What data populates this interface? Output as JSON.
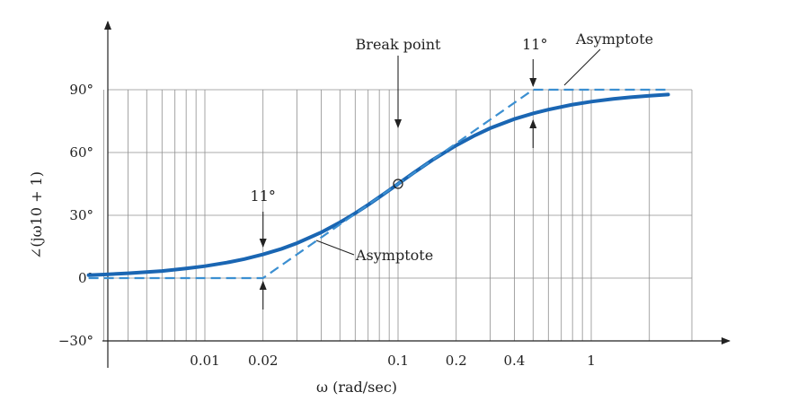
{
  "chart_data": {
    "type": "line",
    "xlabel": "ω (rad/sec)",
    "ylabel": "∠(jω10 + 1)",
    "x_scale": "log",
    "xlim": [
      0.0025,
      3.0
    ],
    "ylim": [
      -30,
      100
    ],
    "x_tick_labels": [
      {
        "value": 0.01,
        "label": "0.01"
      },
      {
        "value": 0.02,
        "label": "0.02"
      },
      {
        "value": 0.1,
        "label": "0.1"
      },
      {
        "value": 0.2,
        "label": "0.2"
      },
      {
        "value": 0.4,
        "label": "0.4"
      },
      {
        "value": 1,
        "label": "1"
      }
    ],
    "y_tick_labels": [
      {
        "value": 90,
        "label": "90°"
      },
      {
        "value": 60,
        "label": "60°"
      },
      {
        "value": 30,
        "label": "30°"
      },
      {
        "value": 0,
        "label": "0°"
      },
      {
        "value": -30,
        "label": "−30°"
      }
    ],
    "x_grid": [
      0.003,
      0.004,
      0.005,
      0.006,
      0.007,
      0.008,
      0.009,
      0.01,
      0.02,
      0.03,
      0.04,
      0.05,
      0.06,
      0.07,
      0.08,
      0.09,
      0.1,
      0.2,
      0.3,
      0.4,
      0.5,
      0.6,
      0.7,
      0.8,
      0.9,
      1,
      2
    ],
    "y_grid": [
      0,
      30,
      60,
      90
    ],
    "series": [
      {
        "kind": "exact",
        "color": "#1a66b3",
        "x": [
          0.0025,
          0.003,
          0.004,
          0.005,
          0.006,
          0.008,
          0.01,
          0.013,
          0.016,
          0.02,
          0.025,
          0.03,
          0.04,
          0.05,
          0.06,
          0.07,
          0.08,
          0.09,
          0.1,
          0.12,
          0.15,
          0.2,
          0.25,
          0.3,
          0.4,
          0.5,
          0.6,
          0.8,
          1.0,
          1.3,
          1.6,
          2.0,
          2.5
        ],
        "y": [
          1.4,
          1.7,
          2.3,
          2.9,
          3.4,
          4.6,
          5.7,
          7.4,
          9.1,
          11.3,
          14.0,
          16.7,
          21.8,
          26.6,
          31.0,
          35.0,
          38.7,
          42.0,
          45.0,
          50.2,
          56.3,
          63.4,
          68.2,
          71.6,
          76.0,
          78.7,
          80.5,
          82.9,
          84.3,
          85.6,
          86.4,
          87.1,
          87.7
        ]
      },
      {
        "kind": "asymptote",
        "color": "#3b8fd1",
        "x": [
          0.0025,
          0.02,
          0.5,
          2.5
        ],
        "y": [
          0,
          0,
          90,
          90
        ]
      }
    ],
    "annotations": [
      {
        "label": "Break point",
        "x": 0.1,
        "y": 45,
        "marker": "circle"
      },
      {
        "label": "11°",
        "x": 0.5,
        "y": 90,
        "at": "upper"
      },
      {
        "label": "Asymptote",
        "at": "upper",
        "x": 0.9,
        "y": 90
      },
      {
        "label": "11°",
        "x": 0.02,
        "y": 0,
        "at": "lower"
      },
      {
        "label": "Asymptote",
        "at": "lower",
        "x": 0.04,
        "y": 18
      }
    ],
    "grid": true,
    "legend": "none"
  }
}
